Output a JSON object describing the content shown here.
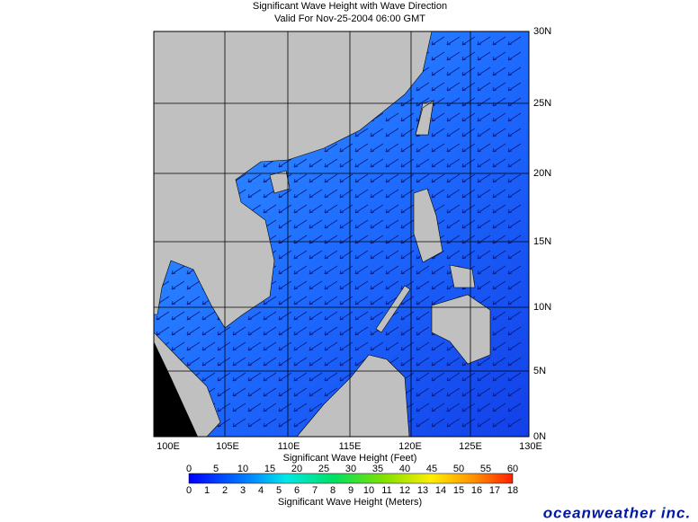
{
  "header": {
    "title": "Significant Wave Height with Wave Direction",
    "subtitle": "Valid For Nov-25-2004 06:00 GMT"
  },
  "map": {
    "longitude_labels": [
      "100E",
      "105E",
      "110E",
      "115E",
      "120E",
      "125E",
      "130E"
    ],
    "latitude_labels": [
      "30N",
      "25N",
      "20N",
      "15N",
      "10N",
      "5N",
      "0N"
    ]
  },
  "legend": {
    "feet_title": "Significant Wave Height (Feet)",
    "feet_ticks": [
      0,
      5,
      10,
      15,
      20,
      25,
      30,
      35,
      40,
      45,
      50,
      55,
      60
    ],
    "meters_title": "Significant Wave Height (Meters)",
    "meters_ticks": [
      0,
      1,
      2,
      3,
      4,
      5,
      6,
      7,
      8,
      9,
      10,
      11,
      12,
      13,
      14,
      15,
      16,
      17,
      18
    ]
  },
  "footer": {
    "logo": "oceanweather inc."
  }
}
